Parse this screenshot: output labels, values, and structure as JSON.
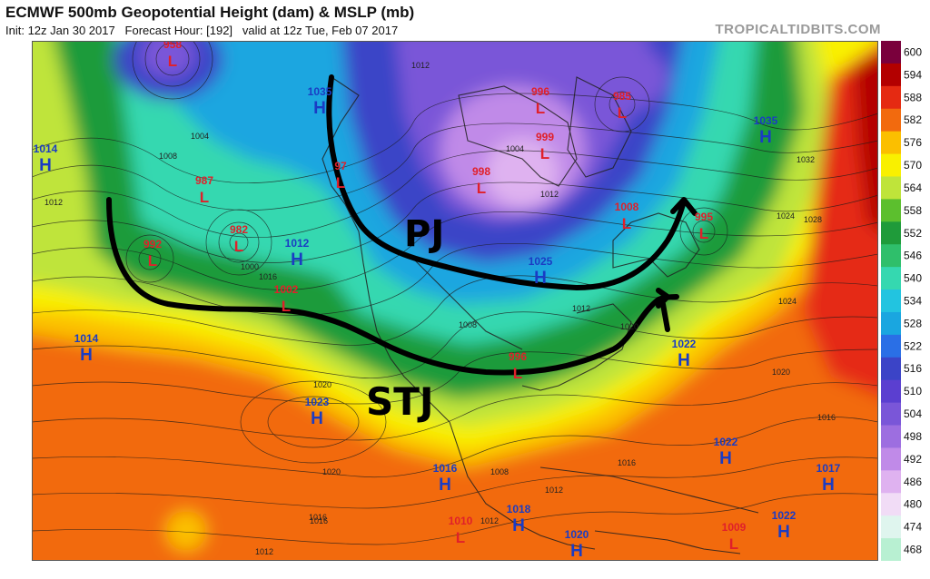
{
  "header": {
    "title": "ECMWF 500mb Geopotential Height (dam) & MSLP (mb)",
    "init_text": "Init: 12z Jan 30 2017",
    "forecast_hour_text": "Forecast Hour: [192]",
    "valid_text": "valid at 12z Tue, Feb 07 2017",
    "credit": "TROPICALTIDBITS.COM"
  },
  "legend": {
    "levels": [
      "600",
      "594",
      "588",
      "582",
      "576",
      "570",
      "564",
      "558",
      "552",
      "546",
      "540",
      "534",
      "528",
      "522",
      "516",
      "510",
      "504",
      "498",
      "492",
      "486",
      "480",
      "474",
      "468"
    ],
    "colors": [
      "#7a003c",
      "#b30000",
      "#e52a12",
      "#f26a0e",
      "#fbbf00",
      "#f9f000",
      "#bfe43a",
      "#5cbf2e",
      "#1f9b3a",
      "#2fbf6b",
      "#35d8b0",
      "#22c4e0",
      "#1aa6e0",
      "#2a6fe6",
      "#3b44c7",
      "#5b3fd0",
      "#7a56d8",
      "#9d6ee0",
      "#c08ae8",
      "#dfb2f0",
      "#f1dcf6",
      "#dff5ee",
      "#b8f0d2"
    ]
  },
  "map": {
    "pressure_centers": [
      {
        "type": "L",
        "value": "958"
      },
      {
        "type": "L",
        "value": "987"
      },
      {
        "type": "L",
        "value": "982"
      },
      {
        "type": "L",
        "value": "992"
      },
      {
        "type": "L",
        "value": "1002"
      },
      {
        "type": "L",
        "value": "97"
      },
      {
        "type": "L",
        "value": "996"
      },
      {
        "type": "L",
        "value": "999"
      },
      {
        "type": "L",
        "value": "985"
      },
      {
        "type": "L",
        "value": "998"
      },
      {
        "type": "L",
        "value": "1008"
      },
      {
        "type": "L",
        "value": "995"
      },
      {
        "type": "L",
        "value": "996"
      },
      {
        "type": "L",
        "value": "1010"
      },
      {
        "type": "L",
        "value": "1009"
      },
      {
        "type": "H",
        "value": "1014"
      },
      {
        "type": "H",
        "value": "1035"
      },
      {
        "type": "H",
        "value": "1012"
      },
      {
        "type": "H",
        "value": "1014"
      },
      {
        "type": "H",
        "value": "1023"
      },
      {
        "type": "H",
        "value": "1035"
      },
      {
        "type": "H",
        "value": "1025"
      },
      {
        "type": "H",
        "value": "1022"
      },
      {
        "type": "H",
        "value": "1016"
      },
      {
        "type": "H",
        "value": "1018"
      },
      {
        "type": "H",
        "value": "1020"
      },
      {
        "type": "H",
        "value": "1022"
      },
      {
        "type": "H",
        "value": "1017"
      },
      {
        "type": "H",
        "value": "1022"
      }
    ],
    "isobar_labels": [
      "1012",
      "1008",
      "1004",
      "1000",
      "1016",
      "1020",
      "1024",
      "1028",
      "1032",
      "1012",
      "1020",
      "1016",
      "1012",
      "1008",
      "1004",
      "1012",
      "1024",
      "1016",
      "1020",
      "1020",
      "1016",
      "1012",
      "1008",
      "1012",
      "1016",
      "1012"
    ],
    "annotations": [
      "PJ",
      "STJ"
    ]
  }
}
